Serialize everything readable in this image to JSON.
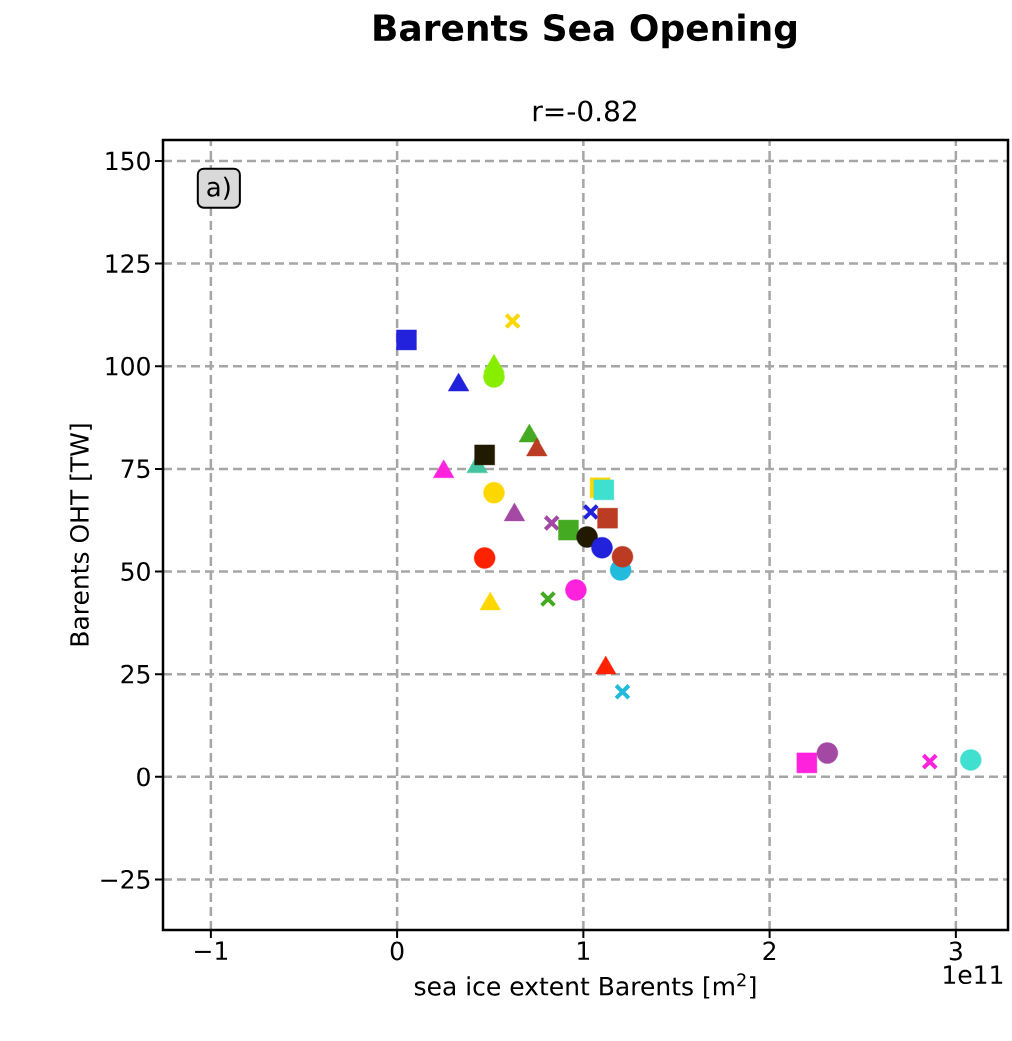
{
  "chart_data": {
    "type": "scatter",
    "title": "Barents Sea Opening",
    "subtitle": "r=-0.82",
    "xlabel": "sea ice extent Barents [m$^{2}$]",
    "ylabel": "Barents OHT [TW]",
    "annotations": [
      "a)",
      "1e11"
    ],
    "xlim": [
      -1.257,
      3.28
    ],
    "ylim": [
      -37.3,
      155.1
    ],
    "xticks": [
      {
        "value": -1,
        "label": "−1"
      },
      0,
      1,
      2,
      3
    ],
    "yticks": [
      {
        "value": -25,
        "label": "−25"
      },
      0,
      25,
      50,
      75,
      100,
      125,
      150
    ],
    "grid": true,
    "series": [
      {
        "marker": "square",
        "color": "#2222dd",
        "x": [
          0.05
        ],
        "values": [
          106.4
        ]
      },
      {
        "marker": "triangle",
        "color": "#2222dd",
        "x": [
          0.33
        ],
        "values": [
          95.4
        ]
      },
      {
        "marker": "triangle",
        "color": "#88ee00",
        "x": [
          0.52
        ],
        "values": [
          100
        ]
      },
      {
        "marker": "circle",
        "color": "#88ee00",
        "x": [
          0.52
        ],
        "values": [
          97.4
        ]
      },
      {
        "marker": "cross",
        "color": "#ffd700",
        "x": [
          0.62
        ],
        "values": [
          111
        ]
      },
      {
        "marker": "triangle",
        "color": "#44aa22",
        "x": [
          0.71
        ],
        "values": [
          83
        ]
      },
      {
        "marker": "triangle",
        "color": "#bb3c22",
        "x": [
          0.75
        ],
        "values": [
          79.6
        ]
      },
      {
        "marker": "triangle",
        "color": "#44c4a0",
        "x": [
          0.43
        ],
        "values": [
          75.5
        ]
      },
      {
        "marker": "square",
        "color": "#221a00",
        "x": [
          0.47
        ],
        "values": [
          78.4
        ]
      },
      {
        "marker": "triangle",
        "color": "#ff22dd",
        "x": [
          0.25
        ],
        "values": [
          74.3
        ]
      },
      {
        "marker": "circle",
        "color": "#ffd700",
        "x": [
          0.52
        ],
        "values": [
          69.2
        ]
      },
      {
        "marker": "triangle",
        "color": "#a349a4",
        "x": [
          0.63
        ],
        "values": [
          63.8
        ]
      },
      {
        "marker": "cross",
        "color": "#a349a4",
        "x": [
          0.83
        ],
        "values": [
          61.8
        ]
      },
      {
        "marker": "cross",
        "color": "#2222dd",
        "x": [
          1.04
        ],
        "values": [
          64.5
        ]
      },
      {
        "marker": "square",
        "color": "#44aa22",
        "x": [
          0.92
        ],
        "values": [
          60.1
        ]
      },
      {
        "marker": "circle",
        "color": "#221a00",
        "x": [
          1.02
        ],
        "values": [
          58.4
        ]
      },
      {
        "marker": "square",
        "color": "#ffd700",
        "x": [
          1.09
        ],
        "values": [
          70.4
        ]
      },
      {
        "marker": "square",
        "color": "#40e0d0",
        "x": [
          1.11
        ],
        "values": [
          69.9
        ]
      },
      {
        "marker": "square",
        "color": "#bb3c22",
        "x": [
          1.13
        ],
        "values": [
          63
        ]
      },
      {
        "marker": "circle",
        "color": "#2222dd",
        "x": [
          1.1
        ],
        "values": [
          55.8
        ]
      },
      {
        "marker": "circle",
        "color": "#22bbdd",
        "x": [
          1.2
        ],
        "values": [
          50.4
        ]
      },
      {
        "marker": "circle",
        "color": "#bb3c22",
        "x": [
          1.21
        ],
        "values": [
          53.6
        ]
      },
      {
        "marker": "circle",
        "color": "#ff2200",
        "x": [
          0.47
        ],
        "values": [
          53.3
        ]
      },
      {
        "marker": "circle",
        "color": "#ff22dd",
        "x": [
          0.96
        ],
        "values": [
          45.5
        ]
      },
      {
        "marker": "cross",
        "color": "#44aa22",
        "x": [
          0.81
        ],
        "values": [
          43.3
        ]
      },
      {
        "marker": "triangle",
        "color": "#ffd700",
        "x": [
          0.5
        ],
        "values": [
          42.1
        ]
      },
      {
        "marker": "triangle",
        "color": "#ff2200",
        "x": [
          1.12
        ],
        "values": [
          26.5
        ]
      },
      {
        "marker": "cross",
        "color": "#22bbdd",
        "x": [
          1.21
        ],
        "values": [
          20.7
        ]
      },
      {
        "marker": "square",
        "color": "#ff22dd",
        "x": [
          2.2
        ],
        "values": [
          3.4
        ]
      },
      {
        "marker": "circle",
        "color": "#a349a4",
        "x": [
          2.31
        ],
        "values": [
          5.8
        ]
      },
      {
        "marker": "cross",
        "color": "#ff22dd",
        "x": [
          2.86
        ],
        "values": [
          3.7
        ]
      },
      {
        "marker": "circle",
        "color": "#40e0d0",
        "x": [
          3.08
        ],
        "values": [
          4.1
        ]
      }
    ]
  }
}
